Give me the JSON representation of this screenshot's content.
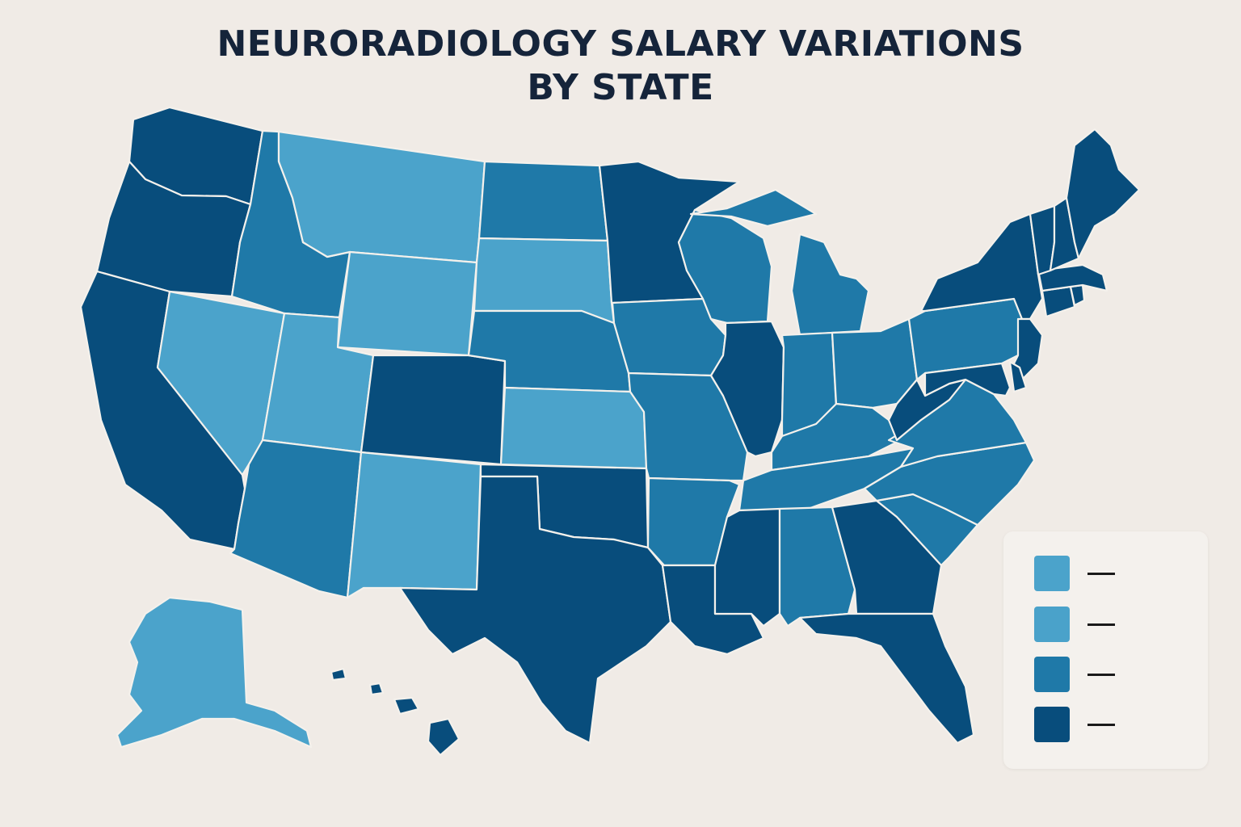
{
  "title": {
    "line1": "NEURORADIOLOGY SALARY VARIATIONS",
    "line2": "BY STATE"
  },
  "colors": {
    "background": "#f0ebe6",
    "tier1": "#4ba3cb",
    "tier2": "#4aa2ca",
    "tier3": "#1f79a8",
    "tier4": "#084d7c",
    "border": "#f4f1ec"
  },
  "legend": {
    "items": [
      {
        "tier": "tier1",
        "label": ""
      },
      {
        "tier": "tier2",
        "label": ""
      },
      {
        "tier": "tier3",
        "label": ""
      },
      {
        "tier": "tier4",
        "label": ""
      }
    ]
  },
  "states": [
    {
      "abbr": "WA",
      "tier": "tier4"
    },
    {
      "abbr": "OR",
      "tier": "tier4"
    },
    {
      "abbr": "CA",
      "tier": "tier4"
    },
    {
      "abbr": "NV",
      "tier": "tier1"
    },
    {
      "abbr": "ID",
      "tier": "tier3"
    },
    {
      "abbr": "MT",
      "tier": "tier1"
    },
    {
      "abbr": "WY",
      "tier": "tier1"
    },
    {
      "abbr": "UT",
      "tier": "tier1"
    },
    {
      "abbr": "CO",
      "tier": "tier4"
    },
    {
      "abbr": "AZ",
      "tier": "tier3"
    },
    {
      "abbr": "NM",
      "tier": "tier1"
    },
    {
      "abbr": "ND",
      "tier": "tier3"
    },
    {
      "abbr": "SD",
      "tier": "tier1"
    },
    {
      "abbr": "NE",
      "tier": "tier3"
    },
    {
      "abbr": "KS",
      "tier": "tier1"
    },
    {
      "abbr": "OK",
      "tier": "tier4"
    },
    {
      "abbr": "TX",
      "tier": "tier4"
    },
    {
      "abbr": "MN",
      "tier": "tier4"
    },
    {
      "abbr": "IA",
      "tier": "tier3"
    },
    {
      "abbr": "MO",
      "tier": "tier3"
    },
    {
      "abbr": "AR",
      "tier": "tier3"
    },
    {
      "abbr": "LA",
      "tier": "tier4"
    },
    {
      "abbr": "WI",
      "tier": "tier3"
    },
    {
      "abbr": "IL",
      "tier": "tier4"
    },
    {
      "abbr": "MI",
      "tier": "tier3"
    },
    {
      "abbr": "IN",
      "tier": "tier3"
    },
    {
      "abbr": "OH",
      "tier": "tier3"
    },
    {
      "abbr": "KY",
      "tier": "tier3"
    },
    {
      "abbr": "TN",
      "tier": "tier3"
    },
    {
      "abbr": "MS",
      "tier": "tier4"
    },
    {
      "abbr": "AL",
      "tier": "tier3"
    },
    {
      "abbr": "GA",
      "tier": "tier4"
    },
    {
      "abbr": "FL",
      "tier": "tier4"
    },
    {
      "abbr": "SC",
      "tier": "tier3"
    },
    {
      "abbr": "NC",
      "tier": "tier3"
    },
    {
      "abbr": "VA",
      "tier": "tier3"
    },
    {
      "abbr": "WV",
      "tier": "tier4"
    },
    {
      "abbr": "PA",
      "tier": "tier3"
    },
    {
      "abbr": "NY",
      "tier": "tier4"
    },
    {
      "abbr": "NJ",
      "tier": "tier4"
    },
    {
      "abbr": "MD",
      "tier": "tier4"
    },
    {
      "abbr": "DE",
      "tier": "tier4"
    },
    {
      "abbr": "CT",
      "tier": "tier4"
    },
    {
      "abbr": "RI",
      "tier": "tier4"
    },
    {
      "abbr": "MA",
      "tier": "tier4"
    },
    {
      "abbr": "VT",
      "tier": "tier4"
    },
    {
      "abbr": "NH",
      "tier": "tier4"
    },
    {
      "abbr": "ME",
      "tier": "tier4"
    },
    {
      "abbr": "AK",
      "tier": "tier1"
    },
    {
      "abbr": "HI",
      "tier": "tier4"
    }
  ]
}
